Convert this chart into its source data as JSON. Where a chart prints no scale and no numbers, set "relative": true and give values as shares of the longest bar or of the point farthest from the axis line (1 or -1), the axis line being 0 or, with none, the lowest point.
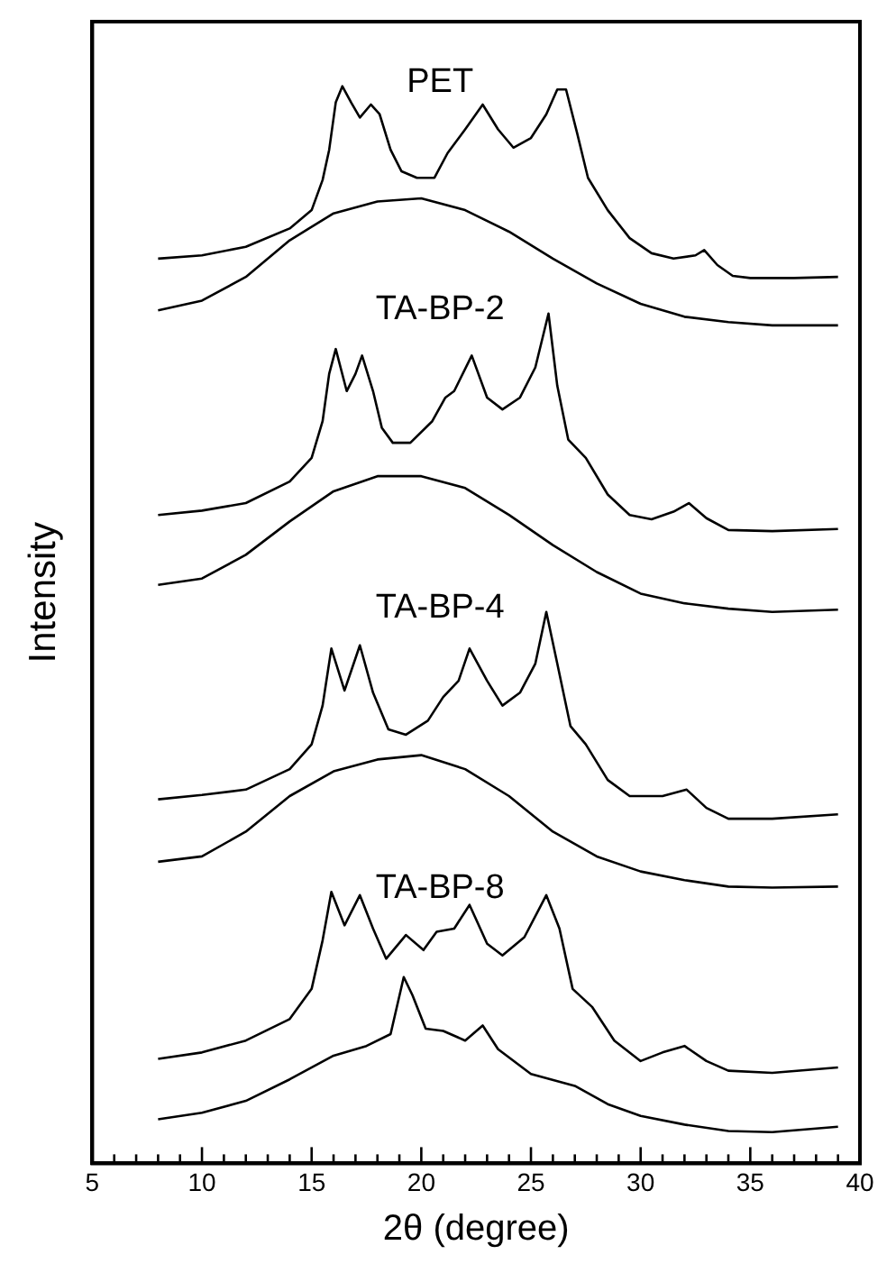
{
  "chart_data": {
    "type": "line",
    "relative": true,
    "xlabel": "2θ (degree)",
    "ylabel": "Intensity",
    "xlim": [
      5,
      40
    ],
    "xticks": [
      5,
      {
        "value": 6,
        "label": null
      },
      {
        "value": 7,
        "label": null
      },
      {
        "value": 8,
        "label": null
      },
      {
        "value": 9,
        "label": null
      },
      10,
      {
        "value": 11,
        "label": null
      },
      {
        "value": 12,
        "label": null
      },
      {
        "value": 13,
        "label": null
      },
      {
        "value": 14,
        "label": null
      },
      15,
      {
        "value": 16,
        "label": null
      },
      {
        "value": 17,
        "label": null
      },
      {
        "value": 18,
        "label": null
      },
      {
        "value": 19,
        "label": null
      },
      20,
      {
        "value": 21,
        "label": null
      },
      {
        "value": 22,
        "label": null
      },
      {
        "value": 23,
        "label": null
      },
      {
        "value": 24,
        "label": null
      },
      25,
      {
        "value": 26,
        "label": null
      },
      {
        "value": 27,
        "label": null
      },
      {
        "value": 28,
        "label": null
      },
      {
        "value": 29,
        "label": null
      },
      30,
      {
        "value": 31,
        "label": null
      },
      {
        "value": 32,
        "label": null
      },
      {
        "value": 33,
        "label": null
      },
      {
        "value": 34,
        "label": null
      },
      35,
      {
        "value": 36,
        "label": null
      },
      {
        "value": 37,
        "label": null
      },
      {
        "value": 38,
        "label": null
      },
      {
        "value": 39,
        "label": null
      },
      40
    ],
    "grid": false,
    "legend": false,
    "marker": "none",
    "line_style": "solid",
    "series": [
      {
        "name": "PET",
        "color": "#000000",
        "x": [
          8,
          10,
          12,
          14,
          15,
          15.5,
          15.8,
          16.1,
          16.4,
          16.8,
          17.2,
          17.7,
          18.1,
          18.6,
          19.1,
          19.8,
          20.6,
          21.2,
          22,
          22.8,
          23.5,
          24.2,
          25,
          25.7,
          26.2,
          26.6,
          27.1,
          27.6,
          28.5,
          29.5,
          30.5,
          31.5,
          32.5,
          32.9,
          33.5,
          34.2,
          35,
          37,
          39
        ],
        "values": [
          0.84,
          0.843,
          0.851,
          0.868,
          0.885,
          0.913,
          0.941,
          0.985,
          1,
          0.985,
          0.971,
          0.983,
          0.974,
          0.941,
          0.921,
          0.915,
          0.915,
          0.938,
          0.96,
          0.983,
          0.96,
          0.943,
          0.952,
          0.974,
          0.997,
          0.997,
          0.957,
          0.915,
          0.885,
          0.859,
          0.845,
          0.84,
          0.843,
          0.848,
          0.834,
          0.824,
          0.822,
          0.822,
          0.823
        ]
      },
      {
        "color": "#000000",
        "x": [
          8,
          10,
          12,
          14,
          16,
          18,
          20,
          22,
          24,
          26,
          28,
          30,
          32,
          34,
          36,
          39
        ],
        "values": [
          0.792,
          0.801,
          0.823,
          0.857,
          0.882,
          0.893,
          0.896,
          0.885,
          0.865,
          0.84,
          0.817,
          0.798,
          0.786,
          0.781,
          0.778,
          0.778
        ]
      },
      {
        "name": "TA-BP-2",
        "color": "#000000",
        "x": [
          8,
          10,
          12,
          14,
          15,
          15.5,
          15.8,
          16.1,
          16.6,
          17,
          17.3,
          17.8,
          18.2,
          18.7,
          19.5,
          20.5,
          21.1,
          21.5,
          22.3,
          23,
          23.7,
          24.5,
          25.2,
          25.8,
          26.2,
          26.7,
          27.5,
          28.5,
          29.5,
          30.5,
          31.5,
          32.2,
          33,
          34,
          36,
          39
        ],
        "values": [
          0.602,
          0.606,
          0.613,
          0.633,
          0.655,
          0.689,
          0.733,
          0.756,
          0.717,
          0.733,
          0.75,
          0.717,
          0.683,
          0.669,
          0.669,
          0.689,
          0.711,
          0.717,
          0.75,
          0.711,
          0.7,
          0.711,
          0.739,
          0.789,
          0.722,
          0.672,
          0.655,
          0.621,
          0.602,
          0.598,
          0.605,
          0.613,
          0.599,
          0.588,
          0.587,
          0.589
        ]
      },
      {
        "color": "#000000",
        "x": [
          8,
          10,
          12,
          14,
          16,
          18,
          20,
          22,
          24,
          26,
          28,
          30,
          32,
          34,
          36,
          39
        ],
        "values": [
          0.537,
          0.543,
          0.565,
          0.596,
          0.624,
          0.638,
          0.638,
          0.627,
          0.602,
          0.574,
          0.549,
          0.529,
          0.52,
          0.515,
          0.512,
          0.514
        ]
      },
      {
        "name": "TA-BP-4",
        "color": "#000000",
        "x": [
          8,
          10,
          12,
          14,
          15,
          15.5,
          15.9,
          16.5,
          17.2,
          17.8,
          18.5,
          19.3,
          20.3,
          21,
          21.7,
          22.2,
          23,
          23.7,
          24.5,
          25.2,
          25.7,
          26.2,
          26.8,
          27.5,
          28.5,
          29.5,
          31,
          32.1,
          33,
          34,
          36,
          39
        ],
        "values": [
          0.338,
          0.342,
          0.347,
          0.366,
          0.389,
          0.425,
          0.478,
          0.439,
          0.481,
          0.437,
          0.403,
          0.398,
          0.411,
          0.433,
          0.448,
          0.478,
          0.448,
          0.425,
          0.437,
          0.464,
          0.512,
          0.464,
          0.406,
          0.389,
          0.356,
          0.341,
          0.341,
          0.347,
          0.33,
          0.32,
          0.32,
          0.324
        ]
      },
      {
        "color": "#000000",
        "x": [
          8,
          10,
          12,
          14,
          16,
          18,
          20,
          22,
          24,
          26,
          28,
          30,
          32,
          34,
          36,
          39
        ],
        "values": [
          0.28,
          0.285,
          0.308,
          0.341,
          0.364,
          0.375,
          0.379,
          0.366,
          0.341,
          0.308,
          0.285,
          0.271,
          0.263,
          0.257,
          0.256,
          0.257
        ]
      },
      {
        "name": "TA-BP-8",
        "color": "#000000",
        "x": [
          8,
          10,
          12,
          14,
          15,
          15.5,
          15.9,
          16.5,
          17.2,
          17.8,
          18.4,
          19.3,
          20.1,
          20.7,
          21.5,
          22.2,
          23,
          23.7,
          24.7,
          25.7,
          26.3,
          26.9,
          27.8,
          28.8,
          30,
          31,
          32,
          33,
          34,
          36,
          39
        ],
        "values": [
          0.097,
          0.103,
          0.114,
          0.134,
          0.162,
          0.207,
          0.252,
          0.221,
          0.249,
          0.218,
          0.19,
          0.212,
          0.198,
          0.215,
          0.218,
          0.24,
          0.204,
          0.193,
          0.21,
          0.249,
          0.218,
          0.162,
          0.145,
          0.114,
          0.095,
          0.103,
          0.109,
          0.095,
          0.086,
          0.084,
          0.089
        ]
      },
      {
        "color": "#000000",
        "x": [
          8,
          10,
          12,
          14,
          16,
          17.5,
          18.6,
          19.2,
          19.6,
          20.2,
          21,
          22,
          22.8,
          23.5,
          25,
          27,
          28.5,
          30,
          32,
          34,
          36,
          39
        ],
        "values": [
          0.041,
          0.047,
          0.058,
          0.078,
          0.1,
          0.109,
          0.12,
          0.173,
          0.156,
          0.125,
          0.123,
          0.114,
          0.128,
          0.106,
          0.083,
          0.072,
          0.055,
          0.044,
          0.036,
          0.03,
          0.029,
          0.034
        ]
      }
    ]
  }
}
